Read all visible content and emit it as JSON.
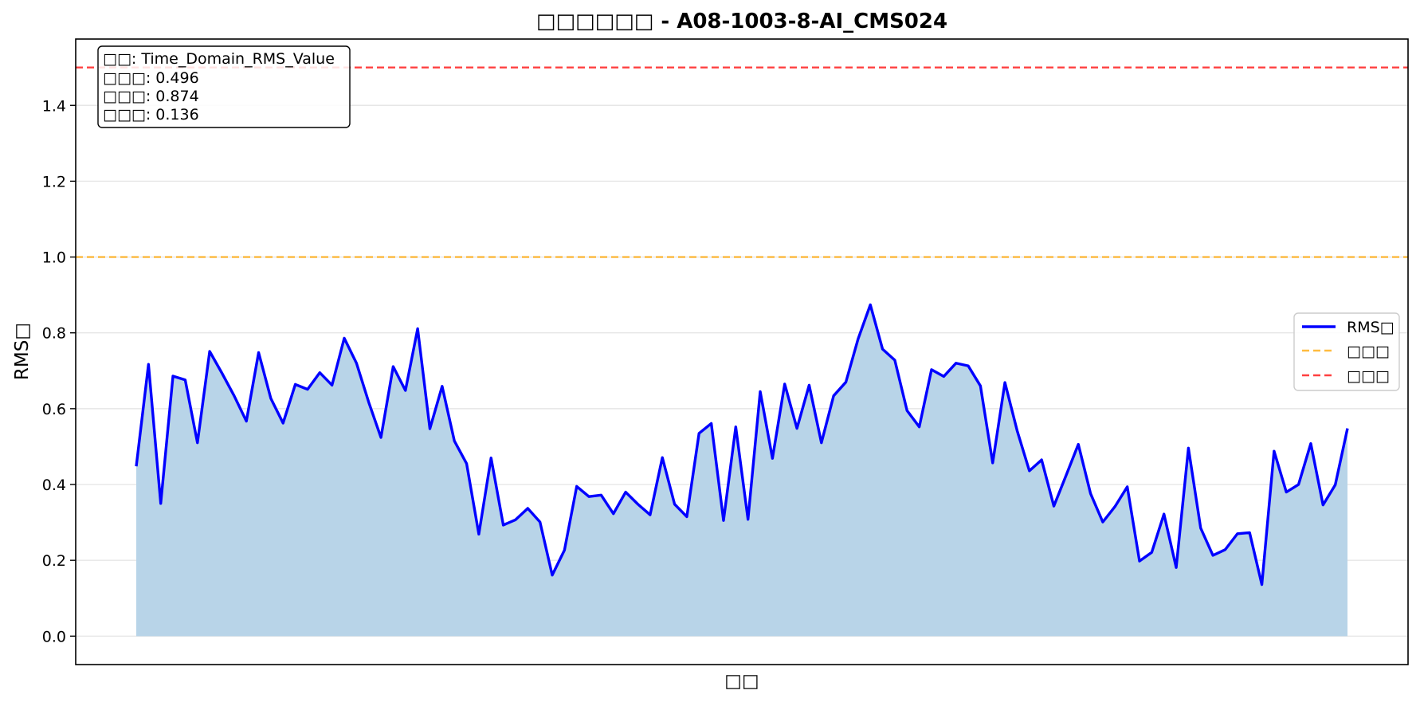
{
  "chart_data": {
    "type": "line",
    "title": "□□□□□□ - A08-1003-8-AI_CMS024",
    "xlabel": "□□",
    "ylabel": "RMS□",
    "ylim": [
      -0.075,
      1.575
    ],
    "yticks": [
      0.0,
      0.2,
      0.4,
      0.6,
      0.8,
      1.0,
      1.2,
      1.4
    ],
    "ytick_labels": [
      "0.0",
      "0.2",
      "0.4",
      "0.6",
      "0.8",
      "1.0",
      "1.2",
      "1.4"
    ],
    "grid": "horizontal",
    "legend_position": "right",
    "series": [
      {
        "name": "RMS□",
        "color": "#0000ff",
        "fill_color": "#b8d4e8",
        "values": [
          0.448,
          0.717,
          0.35,
          0.686,
          0.676,
          0.51,
          0.751,
          0.694,
          0.634,
          0.567,
          0.748,
          0.627,
          0.562,
          0.664,
          0.651,
          0.695,
          0.662,
          0.786,
          0.72,
          0.617,
          0.524,
          0.711,
          0.648,
          0.811,
          0.547,
          0.659,
          0.515,
          0.455,
          0.269,
          0.47,
          0.293,
          0.307,
          0.337,
          0.301,
          0.161,
          0.227,
          0.395,
          0.368,
          0.372,
          0.323,
          0.38,
          0.348,
          0.32,
          0.471,
          0.348,
          0.315,
          0.535,
          0.561,
          0.305,
          0.552,
          0.308,
          0.645,
          0.469,
          0.665,
          0.548,
          0.662,
          0.51,
          0.634,
          0.67,
          0.784,
          0.874,
          0.757,
          0.728,
          0.595,
          0.552,
          0.703,
          0.685,
          0.72,
          0.713,
          0.66,
          0.457,
          0.669,
          0.542,
          0.436,
          0.465,
          0.343,
          0.424,
          0.506,
          0.376,
          0.301,
          0.342,
          0.394,
          0.198,
          0.221,
          0.322,
          0.181,
          0.496,
          0.285,
          0.213,
          0.228,
          0.27,
          0.273,
          0.136,
          0.488,
          0.38,
          0.4,
          0.508,
          0.346,
          0.399,
          0.548
        ]
      }
    ],
    "thresholds": [
      {
        "name": "□□□",
        "value": 1.0,
        "color": "#ffa500"
      },
      {
        "name": "□□□",
        "value": 1.5,
        "color": "#ff0000"
      }
    ],
    "stats_box": {
      "line1": "□□: Time_Domain_RMS_Value",
      "line2": "□□□: 0.496",
      "line3": "□□□: 0.874",
      "line4": "□□□: 0.136"
    }
  }
}
